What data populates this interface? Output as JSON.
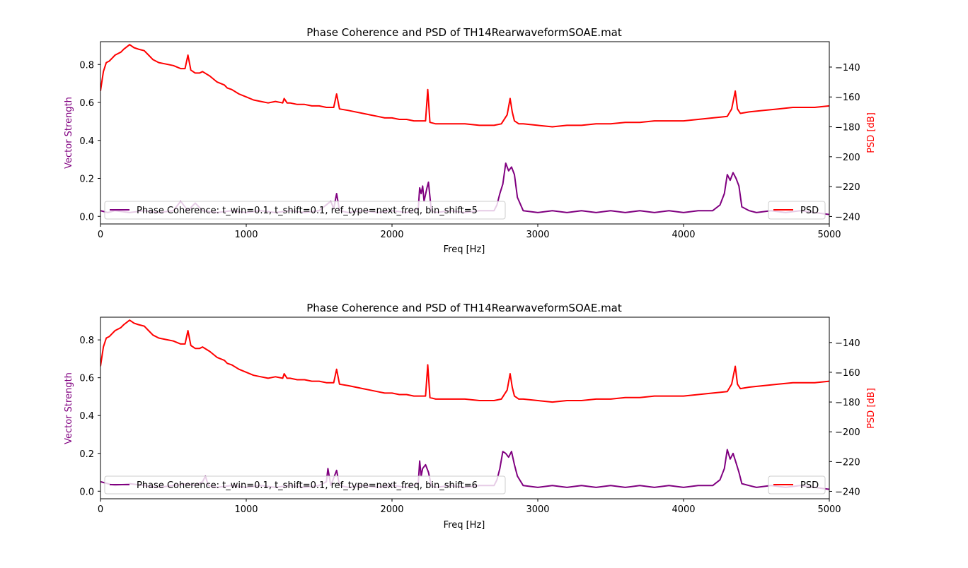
{
  "colors": {
    "coherence": "#800080",
    "psd": "#ff0000",
    "axis": "#000000",
    "legend_border": "#cccccc"
  },
  "chart_data": [
    {
      "type": "line",
      "title": "Phase Coherence and PSD of TH14RearwaveformSOAE.mat",
      "xlabel": "Freq [Hz]",
      "ylabel_left": "Vector Strength",
      "ylabel_right": "PSD [dB]",
      "xlim": [
        0,
        5000
      ],
      "ylim_left": [
        -0.04,
        0.92
      ],
      "ylim_right": [
        -245,
        -123
      ],
      "x_ticks": [
        0,
        1000,
        2000,
        3000,
        4000,
        5000
      ],
      "y_ticks_left": [
        0.0,
        0.2,
        0.4,
        0.6,
        0.8
      ],
      "y_ticks_right": [
        -240,
        -220,
        -200,
        -180,
        -160,
        -140
      ],
      "legend_left": "Phase Coherence: t_win=0.1, t_shift=0.1, ref_type=next_freq, bin_shift=5",
      "legend_right": "PSD",
      "grid": false,
      "series": [
        {
          "name": "PSD",
          "axis": "right",
          "x": [
            0,
            20,
            40,
            60,
            80,
            100,
            120,
            140,
            160,
            200,
            230,
            260,
            300,
            330,
            360,
            400,
            450,
            500,
            550,
            580,
            600,
            620,
            650,
            680,
            700,
            750,
            800,
            850,
            870,
            900,
            950,
            1000,
            1050,
            1100,
            1150,
            1200,
            1250,
            1260,
            1280,
            1300,
            1350,
            1400,
            1450,
            1500,
            1550,
            1600,
            1620,
            1640,
            1700,
            1800,
            1850,
            1900,
            1950,
            2000,
            2050,
            2100,
            2150,
            2200,
            2230,
            2245,
            2260,
            2300,
            2400,
            2500,
            2600,
            2700,
            2750,
            2790,
            2810,
            2825,
            2840,
            2870,
            2900,
            3000,
            3100,
            3200,
            3300,
            3400,
            3500,
            3600,
            3700,
            3800,
            3900,
            4000,
            4100,
            4200,
            4300,
            4330,
            4355,
            4370,
            4390,
            4450,
            4550,
            4650,
            4750,
            4900,
            5000
          ],
          "y": [
            -156,
            -143,
            -137,
            -136,
            -134,
            -132,
            -131,
            -130,
            -128,
            -125,
            -127,
            -128,
            -129,
            -132,
            -135,
            -137,
            -138,
            -139,
            -141,
            -141,
            -132,
            -142,
            -144,
            -144,
            -143,
            -146,
            -150,
            -152,
            -154,
            -155,
            -158,
            -160,
            -162,
            -163,
            -164,
            -163,
            -164,
            -161,
            -164,
            -164,
            -165,
            -165,
            -166,
            -166,
            -167,
            -167,
            -158,
            -168,
            -169,
            -171,
            -172,
            -173,
            -174,
            -174,
            -175,
            -175,
            -176,
            -176,
            -176,
            -155,
            -177,
            -178,
            -178,
            -178,
            -179,
            -179,
            -178,
            -172,
            -161,
            -170,
            -176,
            -178,
            -178,
            -179,
            -180,
            -179,
            -179,
            -178,
            -178,
            -177,
            -177,
            -176,
            -176,
            -176,
            -175,
            -174,
            -173,
            -168,
            -156,
            -168,
            -171,
            -170,
            -169,
            -168,
            -167,
            -167,
            -166
          ]
        },
        {
          "name": "Phase Coherence: t_win=0.1, t_shift=0.1, ref_type=next_freq, bin_shift=5",
          "axis": "left",
          "x": [
            0,
            50,
            100,
            200,
            300,
            400,
            500,
            550,
            600,
            650,
            700,
            800,
            900,
            1000,
            1100,
            1200,
            1300,
            1400,
            1500,
            1580,
            1600,
            1620,
            1640,
            1700,
            1800,
            1900,
            2000,
            2100,
            2180,
            2190,
            2200,
            2210,
            2220,
            2240,
            2250,
            2270,
            2300,
            2400,
            2500,
            2600,
            2700,
            2720,
            2740,
            2760,
            2780,
            2800,
            2820,
            2840,
            2860,
            2900,
            3000,
            3100,
            3200,
            3300,
            3400,
            3500,
            3600,
            3700,
            3800,
            3900,
            4000,
            4100,
            4200,
            4250,
            4280,
            4300,
            4320,
            4340,
            4360,
            4380,
            4400,
            4450,
            4500,
            4600,
            4700,
            4800,
            4900,
            5000
          ],
          "y": [
            0.03,
            0.02,
            0.03,
            0.02,
            0.03,
            0.02,
            0.03,
            0.08,
            0.03,
            0.07,
            0.03,
            0.02,
            0.03,
            0.02,
            0.03,
            0.02,
            0.03,
            0.02,
            0.03,
            0.08,
            0.04,
            0.12,
            0.03,
            0.02,
            0.03,
            0.02,
            0.03,
            0.02,
            0.04,
            0.15,
            0.12,
            0.16,
            0.08,
            0.15,
            0.18,
            0.03,
            0.02,
            0.03,
            0.02,
            0.03,
            0.03,
            0.06,
            0.12,
            0.17,
            0.28,
            0.24,
            0.26,
            0.22,
            0.1,
            0.03,
            0.02,
            0.03,
            0.02,
            0.03,
            0.02,
            0.03,
            0.02,
            0.03,
            0.02,
            0.03,
            0.02,
            0.03,
            0.03,
            0.06,
            0.12,
            0.22,
            0.19,
            0.23,
            0.2,
            0.16,
            0.05,
            0.03,
            0.02,
            0.03,
            0.02,
            0.03,
            0.02,
            0.01
          ]
        }
      ]
    },
    {
      "type": "line",
      "title": "Phase Coherence and PSD of TH14RearwaveformSOAE.mat",
      "xlabel": "Freq [Hz]",
      "ylabel_left": "Vector Strength",
      "ylabel_right": "PSD [dB]",
      "xlim": [
        0,
        5000
      ],
      "ylim_left": [
        -0.04,
        0.92
      ],
      "ylim_right": [
        -245,
        -123
      ],
      "x_ticks": [
        0,
        1000,
        2000,
        3000,
        4000,
        5000
      ],
      "y_ticks_left": [
        0.0,
        0.2,
        0.4,
        0.6,
        0.8
      ],
      "y_ticks_right": [
        -240,
        -220,
        -200,
        -180,
        -160,
        -140
      ],
      "legend_left": "Phase Coherence: t_win=0.1, t_shift=0.1, ref_type=next_freq, bin_shift=6",
      "legend_right": "PSD",
      "grid": false,
      "series": [
        {
          "name": "PSD",
          "axis": "right",
          "x": [
            0,
            20,
            40,
            60,
            80,
            100,
            120,
            140,
            160,
            200,
            230,
            260,
            300,
            330,
            360,
            400,
            450,
            500,
            550,
            580,
            600,
            620,
            650,
            680,
            700,
            750,
            800,
            850,
            870,
            900,
            950,
            1000,
            1050,
            1100,
            1150,
            1200,
            1250,
            1260,
            1280,
            1300,
            1350,
            1400,
            1450,
            1500,
            1550,
            1600,
            1620,
            1640,
            1700,
            1800,
            1850,
            1900,
            1950,
            2000,
            2050,
            2100,
            2150,
            2200,
            2230,
            2245,
            2260,
            2300,
            2400,
            2500,
            2600,
            2700,
            2750,
            2790,
            2810,
            2825,
            2840,
            2870,
            2900,
            3000,
            3100,
            3200,
            3300,
            3400,
            3500,
            3600,
            3700,
            3800,
            3900,
            4000,
            4100,
            4200,
            4300,
            4330,
            4355,
            4370,
            4390,
            4450,
            4550,
            4650,
            4750,
            4900,
            5000
          ],
          "y": [
            -156,
            -143,
            -137,
            -136,
            -134,
            -132,
            -131,
            -130,
            -128,
            -125,
            -127,
            -128,
            -129,
            -132,
            -135,
            -137,
            -138,
            -139,
            -141,
            -141,
            -132,
            -142,
            -144,
            -144,
            -143,
            -146,
            -150,
            -152,
            -154,
            -155,
            -158,
            -160,
            -162,
            -163,
            -164,
            -163,
            -164,
            -161,
            -164,
            -164,
            -165,
            -165,
            -166,
            -166,
            -167,
            -167,
            -158,
            -168,
            -169,
            -171,
            -172,
            -173,
            -174,
            -174,
            -175,
            -175,
            -176,
            -176,
            -176,
            -155,
            -177,
            -178,
            -178,
            -178,
            -179,
            -179,
            -178,
            -172,
            -161,
            -170,
            -176,
            -178,
            -178,
            -179,
            -180,
            -179,
            -179,
            -178,
            -178,
            -177,
            -177,
            -176,
            -176,
            -176,
            -175,
            -174,
            -173,
            -168,
            -156,
            -168,
            -171,
            -170,
            -169,
            -168,
            -167,
            -167,
            -166
          ]
        },
        {
          "name": "Phase Coherence: t_win=0.1, t_shift=0.1, ref_type=next_freq, bin_shift=6",
          "axis": "left",
          "x": [
            0,
            50,
            100,
            200,
            300,
            400,
            500,
            600,
            650,
            700,
            720,
            740,
            800,
            900,
            1000,
            1100,
            1200,
            1300,
            1400,
            1500,
            1550,
            1560,
            1580,
            1620,
            1640,
            1700,
            1800,
            1900,
            2000,
            2100,
            2180,
            2190,
            2200,
            2210,
            2230,
            2250,
            2270,
            2300,
            2400,
            2500,
            2600,
            2700,
            2720,
            2740,
            2760,
            2780,
            2800,
            2820,
            2840,
            2860,
            2900,
            3000,
            3100,
            3200,
            3300,
            3400,
            3500,
            3600,
            3700,
            3800,
            3900,
            4000,
            4100,
            4200,
            4250,
            4280,
            4300,
            4320,
            4340,
            4360,
            4380,
            4400,
            4450,
            4500,
            4600,
            4700,
            4800,
            4900,
            5000
          ],
          "y": [
            0.05,
            0.04,
            0.03,
            0.04,
            0.03,
            0.02,
            0.03,
            0.04,
            0.03,
            0.05,
            0.08,
            0.03,
            0.02,
            0.03,
            0.02,
            0.03,
            0.02,
            0.03,
            0.02,
            0.03,
            0.05,
            0.12,
            0.03,
            0.11,
            0.03,
            0.02,
            0.03,
            0.02,
            0.03,
            0.02,
            0.04,
            0.16,
            0.08,
            0.12,
            0.14,
            0.1,
            0.03,
            0.02,
            0.03,
            0.02,
            0.03,
            0.03,
            0.06,
            0.12,
            0.21,
            0.2,
            0.18,
            0.21,
            0.14,
            0.08,
            0.03,
            0.02,
            0.03,
            0.02,
            0.03,
            0.02,
            0.03,
            0.02,
            0.03,
            0.02,
            0.03,
            0.02,
            0.03,
            0.03,
            0.06,
            0.12,
            0.22,
            0.17,
            0.2,
            0.15,
            0.1,
            0.04,
            0.03,
            0.02,
            0.03,
            0.02,
            0.03,
            0.02,
            0.01
          ]
        }
      ]
    }
  ]
}
